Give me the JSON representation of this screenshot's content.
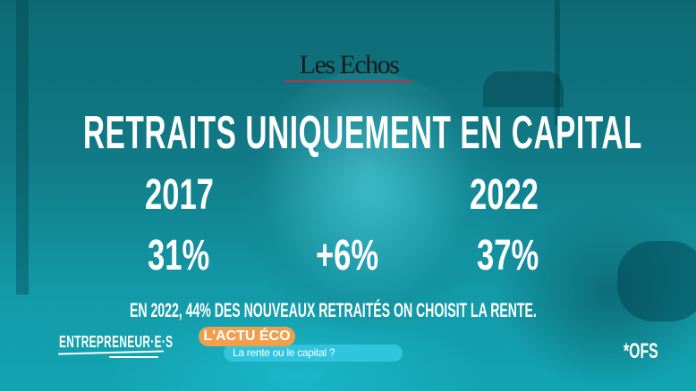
{
  "logo": {
    "text": "Les Echos",
    "underline_color": "#b5354b"
  },
  "headline": "RETRAITS UNIQUEMENT EN CAPITAL",
  "comparison": {
    "start": {
      "year": "2017",
      "value": "31%"
    },
    "change": {
      "value": "+6%"
    },
    "end": {
      "year": "2022",
      "value": "37%"
    }
  },
  "note": "EN 2022, 44% DES NOUVEAUX RETRAITÉS ON CHOISIT LA RENTE.",
  "footer": {
    "brand": "ENTREPRENEUR·E·S",
    "tag": "L'ACTU ÉCO",
    "subtitle": "La rente ou le capital ?",
    "source": "*OFS"
  },
  "colors": {
    "background_teal": "#0e6d78",
    "tag_orange": "#f0a04b",
    "pill_cyan": "#32c8e1",
    "text": "#ffffff"
  },
  "chart_data": {
    "type": "table",
    "title": "RETRAITS UNIQUEMENT EN CAPITAL",
    "categories": [
      "2017",
      "2022"
    ],
    "values": [
      31,
      37
    ],
    "unit": "%",
    "change": "+6%",
    "annotation": "EN 2022, 44% DES NOUVEAUX RETRAITÉS ON CHOISIT LA RENTE.",
    "source": "*OFS"
  }
}
